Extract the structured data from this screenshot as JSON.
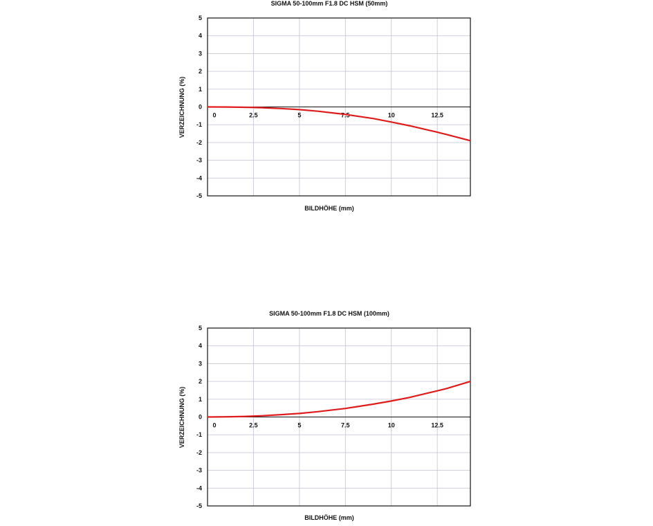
{
  "chart_data": [
    {
      "type": "line",
      "title": "SIGMA  50-100mm F1.8 DC HSM (50mm)",
      "xlabel": "BILDHÖHE (mm)",
      "ylabel": "VERZEICHNUNG (%)",
      "xlim": [
        0,
        14.3
      ],
      "ylim": [
        -5,
        5
      ],
      "xticks": [
        "0",
        "2.5",
        "5",
        "7.5",
        "10",
        "12.5"
      ],
      "yticks": [
        "5",
        "4",
        "3",
        "2",
        "1",
        "0",
        "-1",
        "-2",
        "-3",
        "-4",
        "-5"
      ],
      "grid": true,
      "series": [
        {
          "color": "#e01b1b",
          "x": [
            0,
            1,
            2,
            2.5,
            3,
            4,
            5,
            6,
            7,
            7.5,
            8,
            9,
            10,
            11,
            12,
            12.5,
            13,
            14.3
          ],
          "y": [
            0,
            -0.005,
            -0.02,
            -0.03,
            -0.045,
            -0.09,
            -0.15,
            -0.24,
            -0.36,
            -0.42,
            -0.5,
            -0.65,
            -0.85,
            -1.06,
            -1.3,
            -1.42,
            -1.55,
            -1.9
          ]
        }
      ]
    },
    {
      "type": "line",
      "title": "SIGMA  50-100mm F1.8 DC HSM (100mm)",
      "xlabel": "BILDHÖHE (mm)",
      "ylabel": "VERZEICHNUNG (%)",
      "xlim": [
        0,
        14.3
      ],
      "ylim": [
        -5,
        5
      ],
      "xticks": [
        "0",
        "2.5",
        "5",
        "7.5",
        "10",
        "12.5"
      ],
      "yticks": [
        "5",
        "4",
        "3",
        "2",
        "1",
        "0",
        "-1",
        "-2",
        "-3",
        "-4",
        "-5"
      ],
      "grid": true,
      "series": [
        {
          "color": "#e01b1b",
          "x": [
            0,
            1,
            2,
            2.5,
            3,
            4,
            5,
            6,
            7,
            7.5,
            8,
            9,
            10,
            11,
            12,
            12.5,
            13,
            14.3
          ],
          "y": [
            0,
            0.01,
            0.03,
            0.05,
            0.07,
            0.13,
            0.2,
            0.3,
            0.42,
            0.48,
            0.56,
            0.72,
            0.9,
            1.1,
            1.35,
            1.47,
            1.6,
            2.0
          ]
        }
      ]
    }
  ]
}
